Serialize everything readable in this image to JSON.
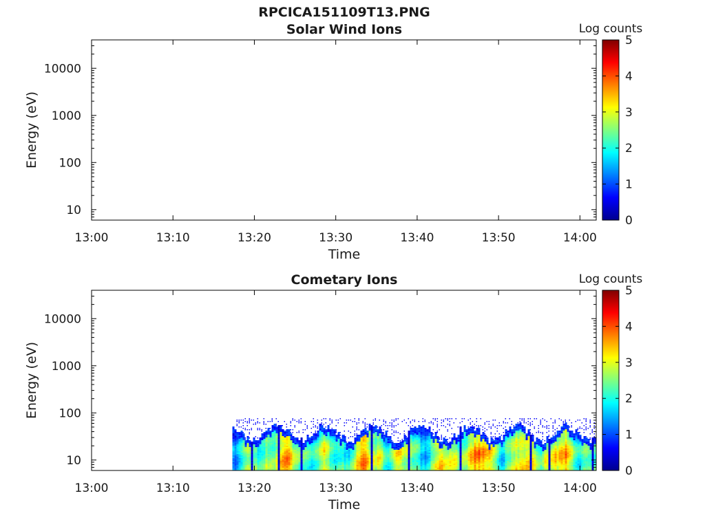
{
  "figure": {
    "title": "RPCICA151109T13.PNG"
  },
  "colorbar": {
    "stops": [
      "#00008f",
      "#0000ff",
      "#0080ff",
      "#00ffff",
      "#80ff80",
      "#ffff00",
      "#ff8000",
      "#ff0000",
      "#800000"
    ]
  },
  "chart_data": [
    {
      "type": "heatmap",
      "title": "Solar Wind Ions",
      "xlabel": "Time",
      "ylabel": "Energy (eV)",
      "x_ticks": [
        "13:00",
        "13:10",
        "13:20",
        "13:30",
        "13:40",
        "13:50",
        "14:00"
      ],
      "x_range": [
        "13:00",
        "14:02"
      ],
      "y_scale": "log",
      "y_ticks": [
        10,
        100,
        1000,
        10000
      ],
      "y_tick_labels": [
        "10",
        "100",
        "1000",
        "10000"
      ],
      "y_range": [
        6,
        40000
      ],
      "colorbar_label": "Log counts",
      "colorbar_range": [
        0,
        5
      ],
      "colorbar_ticks": [
        "0",
        "1",
        "2",
        "3",
        "4",
        "5"
      ],
      "data_present": false
    },
    {
      "type": "heatmap",
      "title": "Cometary Ions",
      "xlabel": "Time",
      "ylabel": "Energy (eV)",
      "x_ticks": [
        "13:00",
        "13:10",
        "13:20",
        "13:30",
        "13:40",
        "13:50",
        "14:00"
      ],
      "x_range": [
        "13:00",
        "14:02"
      ],
      "y_scale": "log",
      "y_ticks": [
        10,
        100,
        1000,
        10000
      ],
      "y_tick_labels": [
        "10",
        "100",
        "1000",
        "10000"
      ],
      "y_range": [
        6,
        40000
      ],
      "colorbar_label": "Log counts",
      "colorbar_range": [
        0,
        5
      ],
      "colorbar_ticks": [
        "0",
        "1",
        "2",
        "3",
        "4",
        "5"
      ],
      "data_present": true,
      "data_time_range": [
        "13:17",
        "14:02"
      ],
      "data_energy_range_eV": [
        6,
        80
      ],
      "typical_log_counts": [
        1.5,
        4.0
      ],
      "peak_log_counts": 4.0
    }
  ]
}
